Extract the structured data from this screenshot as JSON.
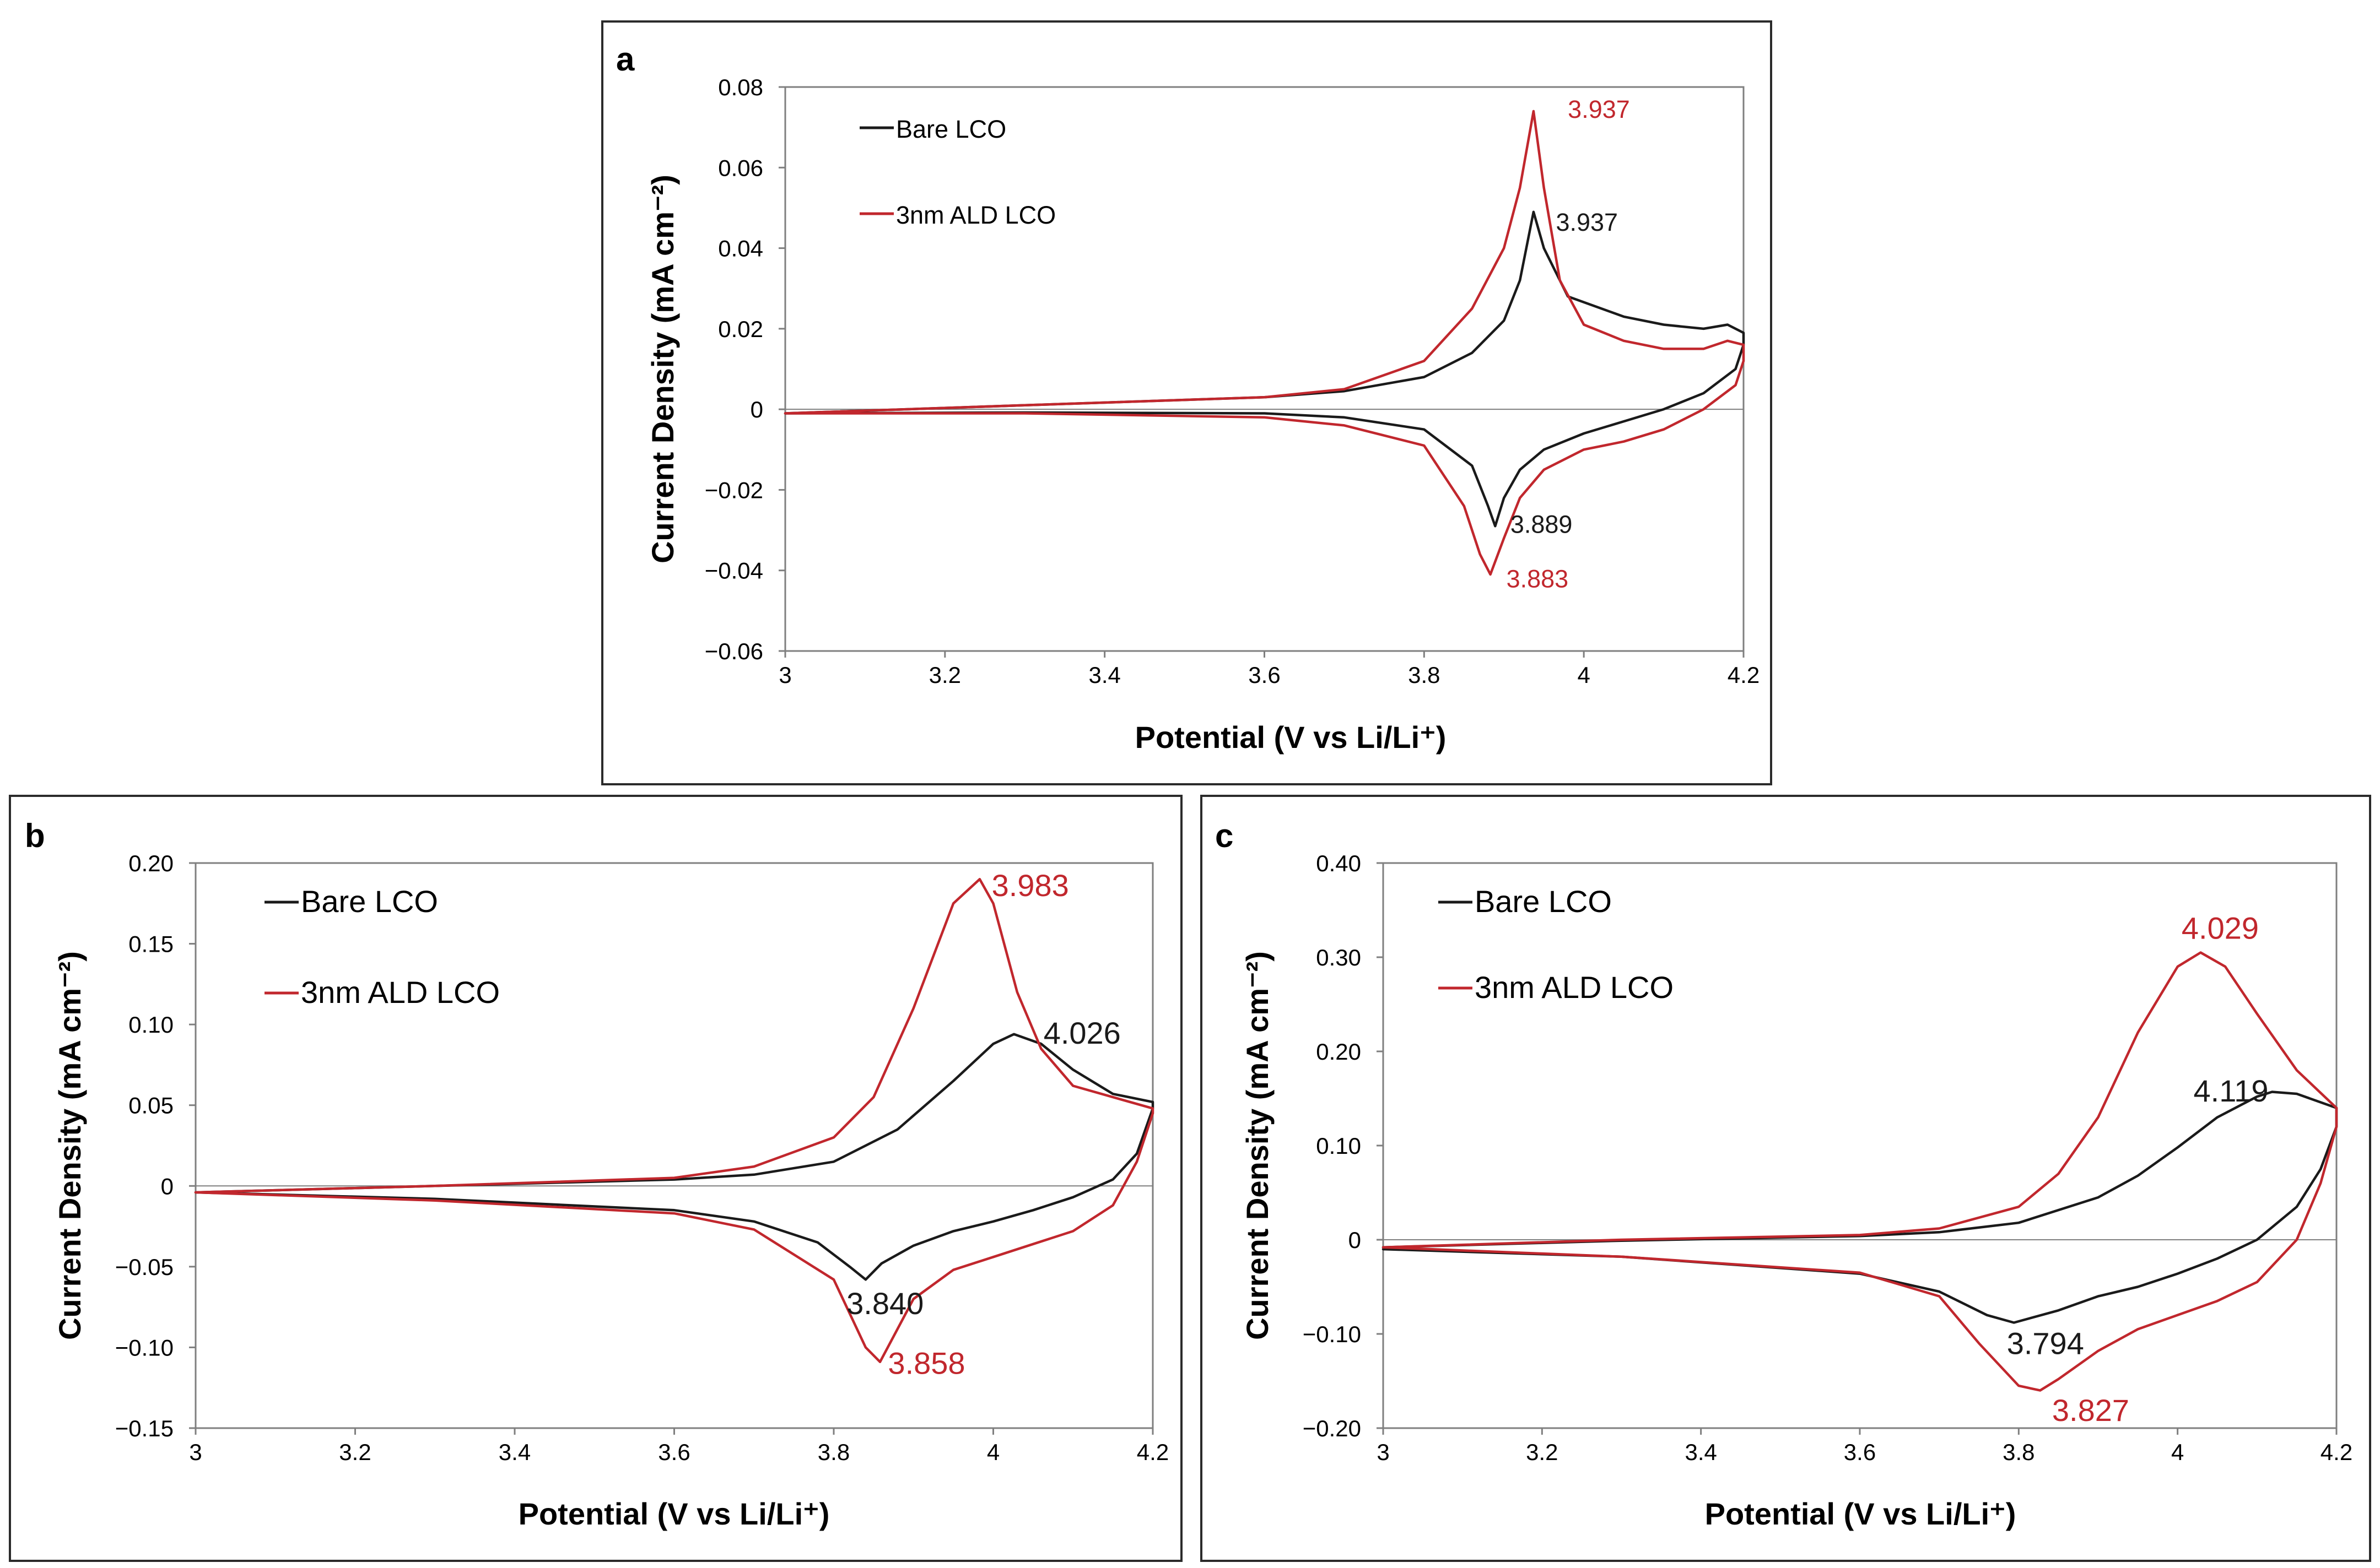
{
  "colors": {
    "bare": "#1a1a1a",
    "ald": "#c1272d",
    "frame": "#2b2b2b",
    "axis": "#7f7f7f"
  },
  "chart_data": [
    {
      "panel": "a",
      "type": "line",
      "xlabel": "Potential (V vs Li/Li⁺)",
      "ylabel": "Current Density (mA cm⁻²)",
      "xlim": [
        3,
        4.2
      ],
      "ylim": [
        -0.06,
        0.08
      ],
      "xticks": [
        3,
        3.2,
        3.4,
        3.6,
        3.8,
        4,
        4.2
      ],
      "xtick_labels": [
        "3",
        "3.2",
        "3.4",
        "3.6",
        "3.8",
        "4",
        "4.2"
      ],
      "yticks": [
        -0.06,
        -0.04,
        -0.02,
        0,
        0.02,
        0.04,
        0.06,
        0.08
      ],
      "ytick_labels": [
        "−0.06",
        "−0.04",
        "−0.02",
        "0",
        "0.02",
        "0.04",
        "0.06",
        "0.08"
      ],
      "legend": [
        "Bare LCO",
        "3nm ALD LCO"
      ],
      "series": [
        {
          "name": "Bare LCO",
          "color_key": "bare",
          "x": [
            3.0,
            3.3,
            3.6,
            3.7,
            3.8,
            3.86,
            3.9,
            3.92,
            3.937,
            3.95,
            3.98,
            4.05,
            4.1,
            4.15,
            4.18,
            4.2,
            4.2,
            4.19,
            4.15,
            4.1,
            4.05,
            4.0,
            3.95,
            3.92,
            3.9,
            3.889,
            3.88,
            3.86,
            3.8,
            3.7,
            3.6,
            3.3,
            3.0
          ],
          "y": [
            -0.001,
            0.001,
            0.003,
            0.0045,
            0.008,
            0.014,
            0.022,
            0.032,
            0.049,
            0.04,
            0.028,
            0.023,
            0.021,
            0.02,
            0.021,
            0.019,
            0.016,
            0.01,
            0.004,
            0.0,
            -0.003,
            -0.006,
            -0.01,
            -0.015,
            -0.022,
            -0.029,
            -0.024,
            -0.014,
            -0.005,
            -0.002,
            -0.001,
            -0.0008,
            -0.001
          ]
        },
        {
          "name": "3nm ALD LCO",
          "color_key": "ald",
          "x": [
            3.0,
            3.3,
            3.6,
            3.7,
            3.8,
            3.86,
            3.9,
            3.92,
            3.937,
            3.95,
            3.97,
            4.0,
            4.05,
            4.1,
            4.15,
            4.18,
            4.2,
            4.2,
            4.19,
            4.15,
            4.1,
            4.05,
            4.0,
            3.95,
            3.92,
            3.9,
            3.883,
            3.87,
            3.85,
            3.8,
            3.7,
            3.6,
            3.3,
            3.0
          ],
          "y": [
            -0.001,
            0.001,
            0.003,
            0.005,
            0.012,
            0.025,
            0.04,
            0.055,
            0.074,
            0.055,
            0.032,
            0.021,
            0.017,
            0.015,
            0.015,
            0.017,
            0.016,
            0.012,
            0.006,
            0.0,
            -0.005,
            -0.008,
            -0.01,
            -0.015,
            -0.022,
            -0.032,
            -0.041,
            -0.036,
            -0.024,
            -0.009,
            -0.004,
            -0.002,
            -0.001,
            -0.001
          ]
        }
      ],
      "annotations": [
        {
          "text": "3.937",
          "x": 3.98,
          "y": 0.0745,
          "color_key": "ald"
        },
        {
          "text": "3.937",
          "x": 3.965,
          "y": 0.0465,
          "color_key": "bare"
        },
        {
          "text": "3.889",
          "x": 3.908,
          "y": -0.0285,
          "color_key": "bare"
        },
        {
          "text": "3.883",
          "x": 3.903,
          "y": -0.042,
          "color_key": "ald"
        }
      ]
    },
    {
      "panel": "b",
      "type": "line",
      "xlabel": "Potential (V vs Li/Li⁺)",
      "ylabel": "Current Density (mA cm⁻²)",
      "xlim": [
        3,
        4.2
      ],
      "ylim": [
        -0.15,
        0.2
      ],
      "xticks": [
        3,
        3.2,
        3.4,
        3.6,
        3.8,
        4,
        4.2
      ],
      "xtick_labels": [
        "3",
        "3.2",
        "3.4",
        "3.6",
        "3.8",
        "4",
        "4.2"
      ],
      "yticks": [
        -0.15,
        -0.1,
        -0.05,
        0,
        0.05,
        0.1,
        0.15,
        0.2
      ],
      "ytick_labels": [
        "−0.15",
        "−0.10",
        "−0.05",
        "0",
        "0.05",
        "0.10",
        "0.15",
        "0.20"
      ],
      "legend": [
        "Bare LCO",
        "3nm ALD LCO"
      ],
      "series": [
        {
          "name": "Bare LCO",
          "color_key": "bare",
          "x": [
            3.0,
            3.3,
            3.6,
            3.7,
            3.8,
            3.88,
            3.95,
            4.0,
            4.026,
            4.06,
            4.1,
            4.15,
            4.2,
            4.2,
            4.18,
            4.15,
            4.1,
            4.05,
            4.0,
            3.95,
            3.9,
            3.86,
            3.84,
            3.82,
            3.78,
            3.7,
            3.6,
            3.3,
            3.0
          ],
          "y": [
            -0.004,
            0.0,
            0.004,
            0.007,
            0.015,
            0.035,
            0.065,
            0.088,
            0.094,
            0.088,
            0.072,
            0.057,
            0.052,
            0.048,
            0.02,
            0.004,
            -0.007,
            -0.015,
            -0.022,
            -0.028,
            -0.037,
            -0.048,
            -0.058,
            -0.05,
            -0.035,
            -0.022,
            -0.015,
            -0.008,
            -0.004
          ]
        },
        {
          "name": "3nm ALD LCO",
          "color_key": "ald",
          "x": [
            3.0,
            3.3,
            3.6,
            3.7,
            3.8,
            3.85,
            3.9,
            3.95,
            3.983,
            4.0,
            4.03,
            4.06,
            4.1,
            4.15,
            4.2,
            4.2,
            4.18,
            4.15,
            4.1,
            4.05,
            4.0,
            3.95,
            3.9,
            3.858,
            3.84,
            3.8,
            3.7,
            3.6,
            3.3,
            3.0
          ],
          "y": [
            -0.004,
            0.0,
            0.005,
            0.012,
            0.03,
            0.055,
            0.11,
            0.175,
            0.19,
            0.175,
            0.12,
            0.085,
            0.062,
            0.055,
            0.048,
            0.045,
            0.015,
            -0.012,
            -0.028,
            -0.036,
            -0.044,
            -0.052,
            -0.07,
            -0.109,
            -0.1,
            -0.058,
            -0.027,
            -0.017,
            -0.009,
            -0.004
          ]
        }
      ],
      "annotations": [
        {
          "text": "3.983",
          "x": 3.998,
          "y": 0.185,
          "color_key": "ald"
        },
        {
          "text": "4.026",
          "x": 4.063,
          "y": 0.0935,
          "color_key": "bare"
        },
        {
          "text": "3.840",
          "x": 3.816,
          "y": -0.074,
          "color_key": "bare"
        },
        {
          "text": "3.858",
          "x": 3.868,
          "y": -0.111,
          "color_key": "ald"
        }
      ]
    },
    {
      "panel": "c",
      "type": "line",
      "xlabel": "Potential (V vs Li/Li⁺)",
      "ylabel": "Current Density (mA cm⁻²)",
      "xlim": [
        3,
        4.2
      ],
      "ylim": [
        -0.2,
        0.4
      ],
      "xticks": [
        3,
        3.2,
        3.4,
        3.6,
        3.8,
        4,
        4.2
      ],
      "xtick_labels": [
        "3",
        "3.2",
        "3.4",
        "3.6",
        "3.8",
        "4",
        "4.2"
      ],
      "yticks": [
        -0.2,
        -0.1,
        0,
        0.1,
        0.2,
        0.3,
        0.4
      ],
      "ytick_labels": [
        "−0.20",
        "−0.10",
        "0",
        "0.10",
        "0.20",
        "0.30",
        "0.40"
      ],
      "legend": [
        "Bare LCO",
        "3nm ALD LCO"
      ],
      "series": [
        {
          "name": "Bare LCO",
          "color_key": "bare",
          "x": [
            3.0,
            3.3,
            3.6,
            3.7,
            3.8,
            3.9,
            3.95,
            4.0,
            4.05,
            4.1,
            4.119,
            4.15,
            4.2,
            4.2,
            4.18,
            4.15,
            4.1,
            4.05,
            4.0,
            3.95,
            3.9,
            3.85,
            3.794,
            3.76,
            3.7,
            3.6,
            3.3,
            3.0
          ],
          "y": [
            -0.008,
            -0.001,
            0.004,
            0.008,
            0.018,
            0.045,
            0.068,
            0.098,
            0.13,
            0.152,
            0.157,
            0.155,
            0.14,
            0.12,
            0.075,
            0.035,
            0.0,
            -0.02,
            -0.036,
            -0.05,
            -0.06,
            -0.075,
            -0.088,
            -0.08,
            -0.055,
            -0.036,
            -0.018,
            -0.01
          ]
        },
        {
          "name": "3nm ALD LCO",
          "color_key": "ald",
          "x": [
            3.0,
            3.3,
            3.6,
            3.7,
            3.8,
            3.85,
            3.9,
            3.95,
            4.0,
            4.029,
            4.06,
            4.1,
            4.15,
            4.2,
            4.2,
            4.18,
            4.15,
            4.1,
            4.05,
            4.0,
            3.95,
            3.9,
            3.85,
            3.827,
            3.8,
            3.75,
            3.7,
            3.6,
            3.3,
            3.0
          ],
          "y": [
            -0.008,
            0.0,
            0.005,
            0.012,
            0.035,
            0.07,
            0.13,
            0.22,
            0.29,
            0.305,
            0.29,
            0.24,
            0.18,
            0.14,
            0.12,
            0.06,
            0.0,
            -0.045,
            -0.065,
            -0.08,
            -0.095,
            -0.118,
            -0.148,
            -0.16,
            -0.155,
            -0.11,
            -0.06,
            -0.035,
            -0.018,
            -0.008
          ]
        }
      ],
      "annotations": [
        {
          "text": "4.029",
          "x": 4.005,
          "y": 0.329,
          "color_key": "ald"
        },
        {
          "text": "4.119",
          "x": 4.02,
          "y": 0.156,
          "color_key": "bare"
        },
        {
          "text": "3.794",
          "x": 3.785,
          "y": -0.112,
          "color_key": "bare"
        },
        {
          "text": "3.827",
          "x": 3.842,
          "y": -0.183,
          "color_key": "ald"
        }
      ]
    }
  ]
}
